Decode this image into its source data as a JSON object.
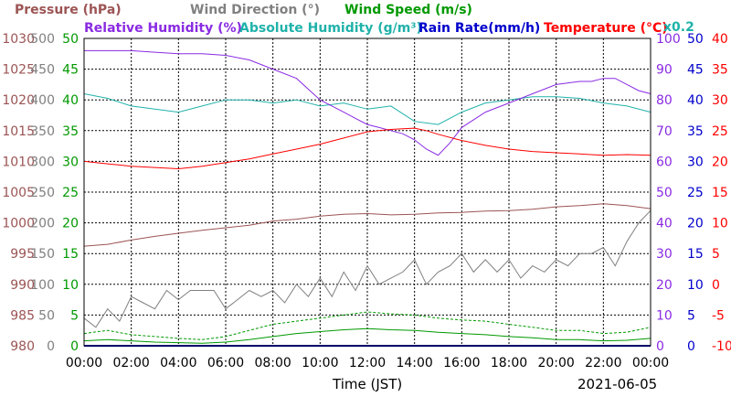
{
  "chart_data": {
    "type": "line",
    "date": "2021-06-05",
    "xlabel": "Time (JST)",
    "x_ticks": [
      "00:00",
      "02:00",
      "04:00",
      "06:00",
      "08:00",
      "10:00",
      "12:00",
      "14:00",
      "16:00",
      "18:00",
      "20:00",
      "22:00",
      "00:00"
    ],
    "x_range_hours": [
      0,
      24
    ],
    "grid": true,
    "axes": {
      "pressure": {
        "label": "Pressure (hPa)",
        "color": "#9c5454",
        "ticks": [
          "980",
          "985",
          "990",
          "995",
          "1000",
          "1005",
          "1010",
          "1015",
          "1020",
          "1025",
          "1030"
        ],
        "range": [
          980,
          1030
        ]
      },
      "wind_dir": {
        "label": "Wind Direction (°)",
        "color": "#808080",
        "ticks": [
          "0",
          "50",
          "100",
          "150",
          "200",
          "250",
          "300",
          "350",
          "400",
          "450",
          "500"
        ],
        "range": [
          0,
          500
        ]
      },
      "wind_speed": {
        "label": "Wind Speed (m/s)",
        "color": "#009900",
        "ticks": [
          "0",
          "5",
          "10",
          "15",
          "20",
          "25",
          "30",
          "35",
          "40",
          "45",
          "50"
        ],
        "range": [
          0,
          50
        ]
      },
      "humidity": {
        "label": "Relative Humidity (%)",
        "color": "#8a2be2",
        "ticks": [
          "0",
          "10",
          "20",
          "30",
          "40",
          "50",
          "60",
          "70",
          "80",
          "90",
          "100"
        ],
        "range": [
          0,
          100
        ]
      },
      "abs_humidity": {
        "label": "Absolute Humidity (g/m³)",
        "color": "#20b2aa",
        "multiplier": "x0.2",
        "range": [
          0,
          20
        ]
      },
      "rain_rate": {
        "label": "Rain Rate(mm/h)",
        "color": "#0000cc",
        "ticks": [
          "0",
          "5",
          "10",
          "15",
          "20",
          "25",
          "30",
          "35",
          "40",
          "45",
          "50"
        ],
        "range": [
          0,
          50
        ]
      },
      "temperature": {
        "label": "Temperature (°C)",
        "color": "#ff0000",
        "ticks": [
          "-10",
          "-5",
          "0",
          "5",
          "10",
          "15",
          "20",
          "25",
          "30",
          "35",
          "40"
        ],
        "range": [
          -10,
          40
        ]
      }
    },
    "series": [
      {
        "name": "Pressure (hPa)",
        "axis": "pressure",
        "x": [
          0,
          1,
          2,
          3,
          4,
          5,
          6,
          7,
          8,
          9,
          10,
          11,
          12,
          13,
          14,
          15,
          16,
          17,
          18,
          19,
          20,
          21,
          22,
          23,
          24
        ],
        "y": [
          996.2,
          996.5,
          997.2,
          997.8,
          998.3,
          998.8,
          999.2,
          999.6,
          1000.3,
          1000.6,
          1001.1,
          1001.4,
          1001.5,
          1001.3,
          1001.4,
          1001.6,
          1001.7,
          1001.9,
          1002.0,
          1002.2,
          1002.6,
          1002.8,
          1003.1,
          1002.8,
          1002.3
        ]
      },
      {
        "name": "Wind Direction (°)",
        "axis": "wind_dir",
        "x": [
          0,
          0.5,
          1,
          1.5,
          2,
          2.5,
          3,
          3.5,
          4,
          4.5,
          5,
          5.5,
          6,
          6.5,
          7,
          7.5,
          8,
          8.5,
          9,
          9.5,
          10,
          10.5,
          11,
          11.5,
          12,
          12.5,
          13,
          13.5,
          14,
          14.5,
          15,
          15.5,
          16,
          16.5,
          17,
          17.5,
          18,
          18.5,
          19,
          19.5,
          20,
          20.5,
          21,
          21.5,
          22,
          22.5,
          23,
          23.5,
          24
        ],
        "y": [
          45,
          30,
          60,
          40,
          80,
          70,
          60,
          90,
          75,
          90,
          90,
          90,
          60,
          75,
          90,
          80,
          90,
          70,
          100,
          80,
          110,
          80,
          120,
          90,
          130,
          100,
          110,
          120,
          140,
          100,
          120,
          130,
          150,
          120,
          140,
          120,
          140,
          110,
          130,
          120,
          140,
          130,
          150,
          150,
          160,
          130,
          170,
          200,
          220
        ]
      },
      {
        "name": "Wind Speed (m/s) max",
        "axis": "wind_speed",
        "dashed": true,
        "x": [
          0,
          1,
          2,
          3,
          4,
          5,
          6,
          7,
          8,
          9,
          10,
          11,
          12,
          13,
          14,
          15,
          16,
          17,
          18,
          19,
          20,
          21,
          22,
          23,
          24
        ],
        "y": [
          2.0,
          2.5,
          1.8,
          1.5,
          1.2,
          1.0,
          1.5,
          2.5,
          3.5,
          4.0,
          4.5,
          5.0,
          5.5,
          5.2,
          5.0,
          4.5,
          4.2,
          4.0,
          3.5,
          3.0,
          2.5,
          2.5,
          2.0,
          2.2,
          3.0
        ]
      },
      {
        "name": "Wind Speed (m/s) avg",
        "axis": "wind_speed",
        "x": [
          0,
          1,
          2,
          3,
          4,
          5,
          6,
          7,
          8,
          9,
          10,
          11,
          12,
          13,
          14,
          15,
          16,
          17,
          18,
          19,
          20,
          21,
          22,
          23,
          24
        ],
        "y": [
          0.8,
          1.0,
          0.8,
          0.6,
          0.5,
          0.4,
          0.6,
          1.0,
          1.5,
          2.0,
          2.3,
          2.6,
          2.8,
          2.6,
          2.5,
          2.2,
          2.0,
          1.8,
          1.5,
          1.3,
          1.0,
          1.0,
          0.8,
          0.9,
          1.2
        ]
      },
      {
        "name": "Relative Humidity (%)",
        "axis": "humidity",
        "x": [
          0,
          1,
          2,
          3,
          4,
          5,
          6,
          7,
          8,
          9,
          10,
          10.5,
          11,
          11.5,
          12,
          12.5,
          13,
          13.5,
          14,
          14.5,
          15,
          15.5,
          16,
          17,
          18,
          19,
          20,
          21,
          21.5,
          22,
          22.5,
          23,
          23.5,
          24
        ],
        "y": [
          96,
          96,
          96,
          95.5,
          95,
          95,
          94.5,
          93,
          90,
          87,
          80,
          78,
          76,
          74,
          72,
          71,
          70,
          69,
          67,
          64,
          62,
          66,
          71,
          76,
          79,
          82,
          85,
          86,
          86,
          87,
          87,
          85,
          83,
          82
        ]
      },
      {
        "name": "Absolute Humidity (g/m³)",
        "axis": "abs_humidity",
        "x": [
          0,
          1,
          2,
          3,
          4,
          5,
          6,
          7,
          8,
          9,
          10,
          11,
          12,
          13,
          14,
          15,
          16,
          17,
          18,
          19,
          20,
          21,
          22,
          23,
          24
        ],
        "y": [
          16.4,
          16.1,
          15.6,
          15.4,
          15.2,
          15.6,
          16.0,
          16.0,
          15.8,
          16.0,
          15.6,
          15.8,
          15.4,
          15.6,
          14.6,
          14.4,
          15.2,
          15.8,
          16.0,
          16.2,
          16.2,
          16.1,
          15.8,
          15.6,
          15.2
        ]
      },
      {
        "name": "Rain Rate(mm/h)",
        "axis": "rain_rate",
        "x": [
          0,
          24
        ],
        "y": [
          0,
          0
        ]
      },
      {
        "name": "Temperature (°C)",
        "axis": "temperature",
        "x": [
          0,
          1,
          2,
          3,
          4,
          5,
          6,
          7,
          8,
          9,
          10,
          11,
          12,
          12.5,
          13,
          13.5,
          14,
          14.5,
          15,
          16,
          17,
          18,
          19,
          20,
          21,
          22,
          23,
          24
        ],
        "y": [
          20,
          19.6,
          19.2,
          19.0,
          18.8,
          19.2,
          19.8,
          20.4,
          21.2,
          22.0,
          22.8,
          23.8,
          24.8,
          25.0,
          25.2,
          25.3,
          25.4,
          25.0,
          24.4,
          23.4,
          22.6,
          22.0,
          21.6,
          21.4,
          21.2,
          21.0,
          21.1,
          21.0
        ]
      }
    ]
  }
}
